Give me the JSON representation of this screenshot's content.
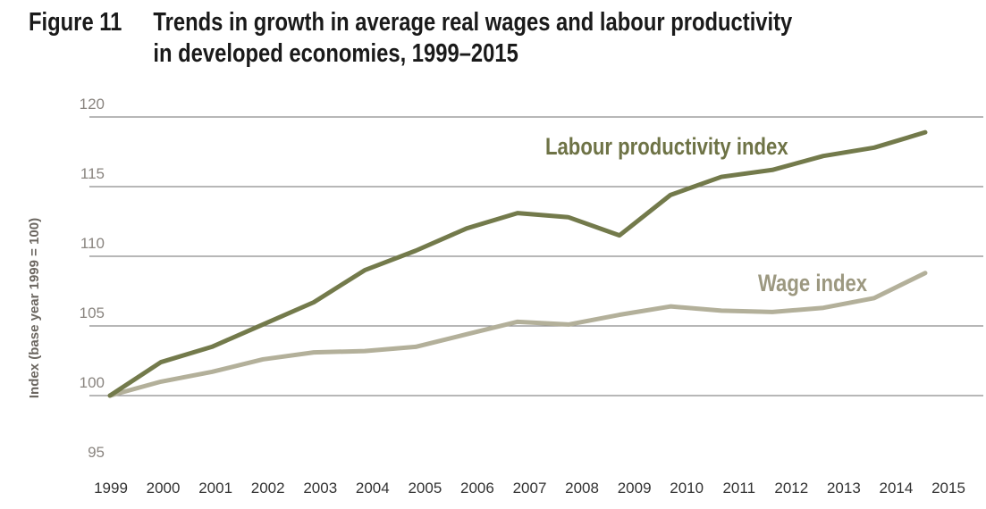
{
  "figure": {
    "number": "Figure 11",
    "title_line1": "Trends in growth in average real wages and labour productivity",
    "title_line2": "in developed economies, 1999–2015"
  },
  "chart_data": {
    "type": "line",
    "title": "Trends in growth in average real wages and labour productivity in developed economies, 1999–2015",
    "xlabel": "",
    "ylabel": "Index (base year 1999 = 100)",
    "ylim": [
      95,
      120
    ],
    "yticks": [
      "95",
      "100",
      "105",
      "110",
      "115",
      "120"
    ],
    "grid": true,
    "categories": [
      "1999",
      "2000",
      "2001",
      "2002",
      "2003",
      "2004",
      "2005",
      "2006",
      "2007",
      "2008",
      "2009",
      "2010",
      "2011",
      "2012",
      "2013",
      "2014",
      "2015"
    ],
    "series": [
      {
        "name": "Labour productivity index",
        "color": "#737a4b",
        "values": [
          100,
          102.4,
          103.5,
          105.1,
          106.7,
          109.0,
          110.4,
          112.0,
          113.1,
          112.8,
          111.5,
          114.4,
          115.7,
          116.2,
          117.2,
          117.8,
          118.9
        ]
      },
      {
        "name": "Wage index",
        "color": "#b3b09a",
        "values": [
          100,
          101.0,
          101.7,
          102.6,
          103.1,
          103.2,
          103.5,
          104.4,
          105.3,
          105.1,
          105.8,
          106.4,
          106.1,
          106.0,
          106.3,
          107.0,
          108.8
        ]
      }
    ],
    "label_colors": {
      "Labour productivity index": "#6e7346",
      "Wage index": "#9c9880"
    }
  }
}
